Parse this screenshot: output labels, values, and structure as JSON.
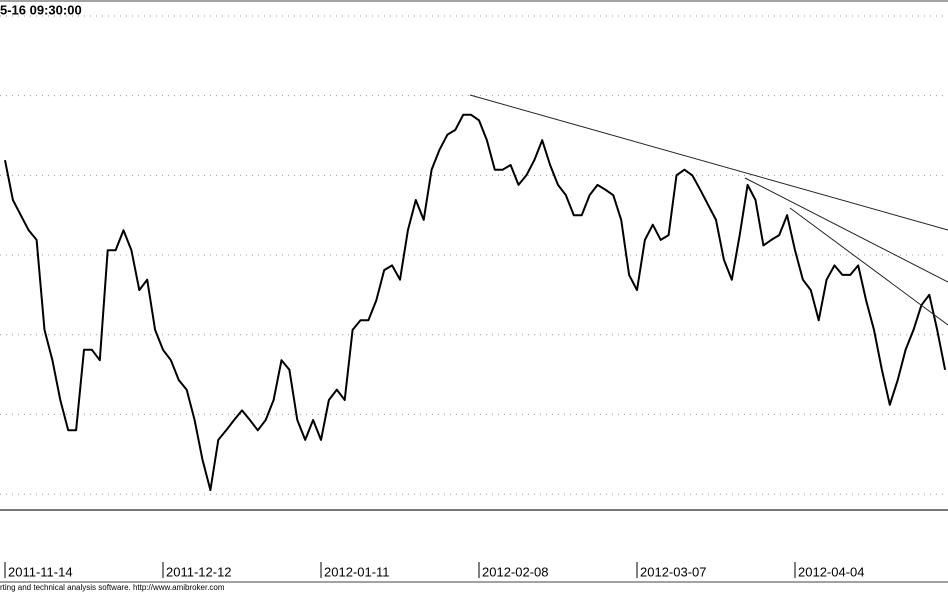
{
  "chart_data": {
    "type": "line",
    "title": "5-16 09:30:00",
    "footer": "rting and technical analysis software. http://www.amibroker.com",
    "categories": [
      "2011-11-14",
      null,
      null,
      null,
      null,
      null,
      null,
      null,
      null,
      null,
      null,
      null,
      null,
      null,
      null,
      null,
      null,
      null,
      null,
      null,
      "2011-12-12",
      null,
      null,
      null,
      null,
      null,
      null,
      null,
      null,
      null,
      null,
      null,
      null,
      null,
      null,
      null,
      null,
      null,
      null,
      null,
      "2012-01-11",
      null,
      null,
      null,
      null,
      null,
      null,
      null,
      null,
      null,
      null,
      null,
      null,
      null,
      null,
      null,
      null,
      null,
      null,
      null,
      "2012-02-08",
      null,
      null,
      null,
      null,
      null,
      null,
      null,
      null,
      null,
      null,
      null,
      null,
      null,
      null,
      null,
      null,
      null,
      null,
      null,
      "2012-03-07",
      null,
      null,
      null,
      null,
      null,
      null,
      null,
      null,
      null,
      null,
      null,
      null,
      null,
      null,
      null,
      null,
      null,
      null,
      null,
      "2012-04-04",
      null,
      null,
      null,
      null,
      null,
      null,
      null,
      null,
      null,
      null,
      null,
      null,
      null,
      null,
      null,
      null,
      null,
      null,
      null
    ],
    "values": [
      5.19,
      4.69,
      4.5,
      4.31,
      4.19,
      3.06,
      2.68,
      2.18,
      1.8,
      1.8,
      2.81,
      2.81,
      2.68,
      4.06,
      4.06,
      4.31,
      4.06,
      3.56,
      3.69,
      3.06,
      2.81,
      2.68,
      2.43,
      2.31,
      1.93,
      1.43,
      1.05,
      1.68,
      1.8,
      1.93,
      2.05,
      1.93,
      1.8,
      1.93,
      2.18,
      2.68,
      2.56,
      1.93,
      1.68,
      1.93,
      1.68,
      2.18,
      2.31,
      2.18,
      3.06,
      3.18,
      3.18,
      3.43,
      3.81,
      3.87,
      3.69,
      4.31,
      4.69,
      4.44,
      5.07,
      5.32,
      5.51,
      5.57,
      5.76,
      5.76,
      5.69,
      5.44,
      5.07,
      5.07,
      5.13,
      4.88,
      5.0,
      5.19,
      5.44,
      5.13,
      4.88,
      4.75,
      4.5,
      4.5,
      4.75,
      4.88,
      4.82,
      4.75,
      4.44,
      3.75,
      3.56,
      4.19,
      4.38,
      4.19,
      4.25,
      5.0,
      5.07,
      5.0,
      4.82,
      4.63,
      4.44,
      3.94,
      3.69,
      4.25,
      4.88,
      4.69,
      4.12,
      4.19,
      4.25,
      4.5,
      4.06,
      3.69,
      3.56,
      3.18,
      3.69,
      3.87,
      3.75,
      3.75,
      3.87,
      3.43,
      3.06,
      2.56,
      2.12,
      2.43,
      2.81,
      3.06,
      3.37,
      3.5,
      3.06,
      2.56
    ],
    "color": "#000000",
    "ylim": [
      0.8,
      7.2
    ],
    "ygrid": [
      1,
      2,
      3,
      4,
      5,
      6,
      7
    ]
  }
}
